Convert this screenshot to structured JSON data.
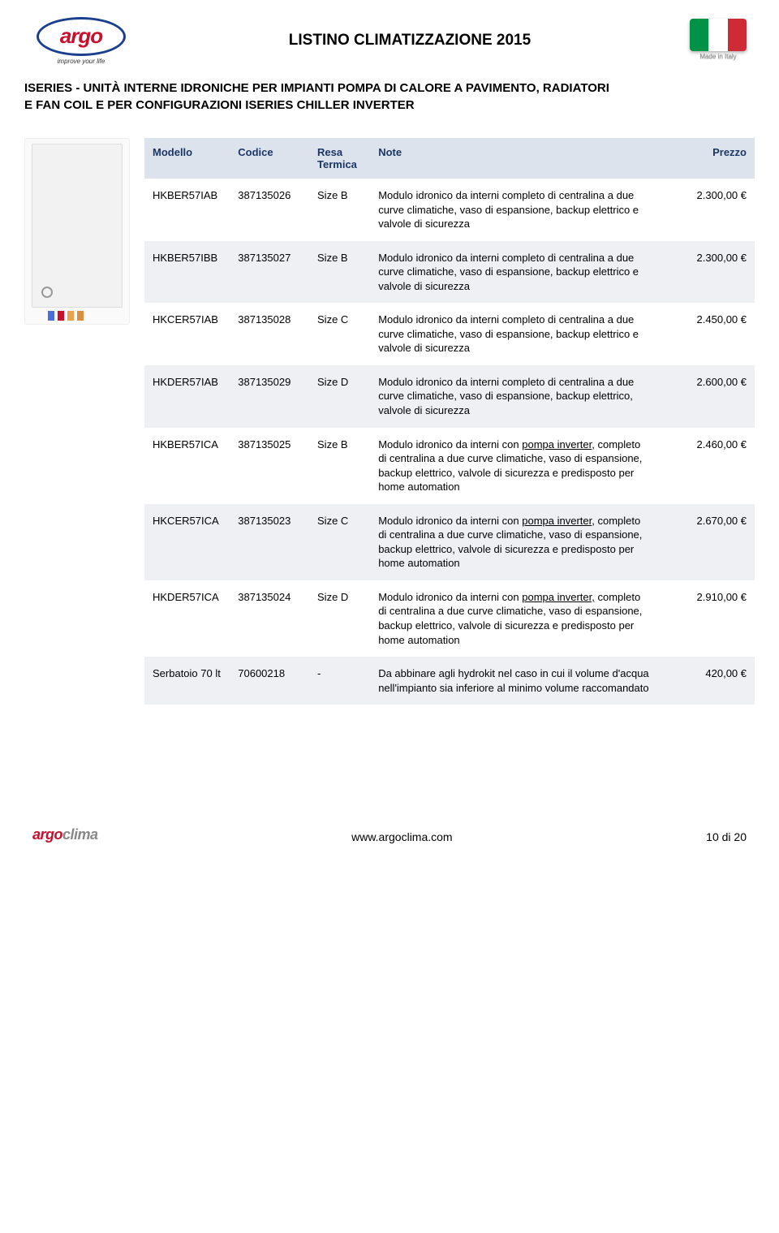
{
  "header": {
    "logo_text": "argo",
    "tagline": "improve your life",
    "page_title": "LISTINO CLIMATIZZAZIONE 2015",
    "made_in": "Made in Italy"
  },
  "section_title_line1": "ISERIES - UNITÀ INTERNE IDRONICHE PER IMPIANTI POMPA DI CALORE A PAVIMENTO, RADIATORI",
  "section_title_line2": "E FAN COIL E PER CONFIGURAZIONI ISERIES CHILLER INVERTER",
  "table": {
    "headers": {
      "model": "Modello",
      "code": "Codice",
      "resa_l1": "Resa",
      "resa_l2": "Termica",
      "note": "Note",
      "price": "Prezzo"
    },
    "rows": [
      {
        "model": "HKBER57IAB",
        "code": "387135026",
        "resa": "Size B",
        "note_html": "Modulo idronico da interni completo di centralina a due curve climatiche, vaso di espansione, backup elettrico e valvole di sicurezza",
        "price": "2.300,00 €"
      },
      {
        "model": "HKBER57IBB",
        "code": "387135027",
        "resa": "Size B",
        "note_html": "Modulo idronico da interni completo di centralina a due curve climatiche, vaso di espansione, backup elettrico e valvole di sicurezza",
        "price": "2.300,00 €"
      },
      {
        "model": "HKCER57IAB",
        "code": "387135028",
        "resa": "Size C",
        "note_html": "Modulo idronico da interni completo di centralina a due curve climatiche, vaso di espansione, backup elettrico e valvole di sicurezza",
        "price": "2.450,00 €"
      },
      {
        "model": "HKDER57IAB",
        "code": "387135029",
        "resa": "Size D",
        "note_html": "Modulo idronico da interni completo di centralina a due curve climatiche, vaso di espansione, backup elettrico, valvole di sicurezza",
        "price": "2.600,00 €"
      },
      {
        "model": "HKBER57ICA",
        "code": "387135025",
        "resa": "Size B",
        "note_html": "Modulo idronico da interni con <span class=\"underline\">pompa inverter</span>, completo di centralina a due curve climatiche, vaso di espansione, backup elettrico, valvole di sicurezza e predisposto per home automation",
        "price": "2.460,00 €"
      },
      {
        "model": "HKCER57ICA",
        "code": "387135023",
        "resa": "Size C",
        "note_html": "Modulo idronico da interni con <span class=\"underline\">pompa inverter</span>, completo di centralina a due curve climatiche, vaso di espansione, backup elettrico, valvole di sicurezza e predisposto per home automation",
        "price": "2.670,00 €"
      },
      {
        "model": "HKDER57ICA",
        "code": "387135024",
        "resa": "Size D",
        "note_html": "Modulo idronico da interni con <span class=\"underline\">pompa inverter,</span> completo di centralina a due curve climatiche, vaso di espansione, backup elettrico, valvole di sicurezza e predisposto per home automation",
        "price": "2.910,00 €"
      },
      {
        "model": "Serbatoio 70 lt",
        "code": "70600218",
        "resa": "-",
        "note_html": "Da abbinare agli hydrokit nel caso in cui il volume d'acqua nell'impianto sia inferiore al minimo volume raccomandato",
        "price": "420,00 €"
      }
    ]
  },
  "footer": {
    "logo": "argoclima",
    "url": "www.argoclima.com",
    "page": "10 di 20"
  }
}
